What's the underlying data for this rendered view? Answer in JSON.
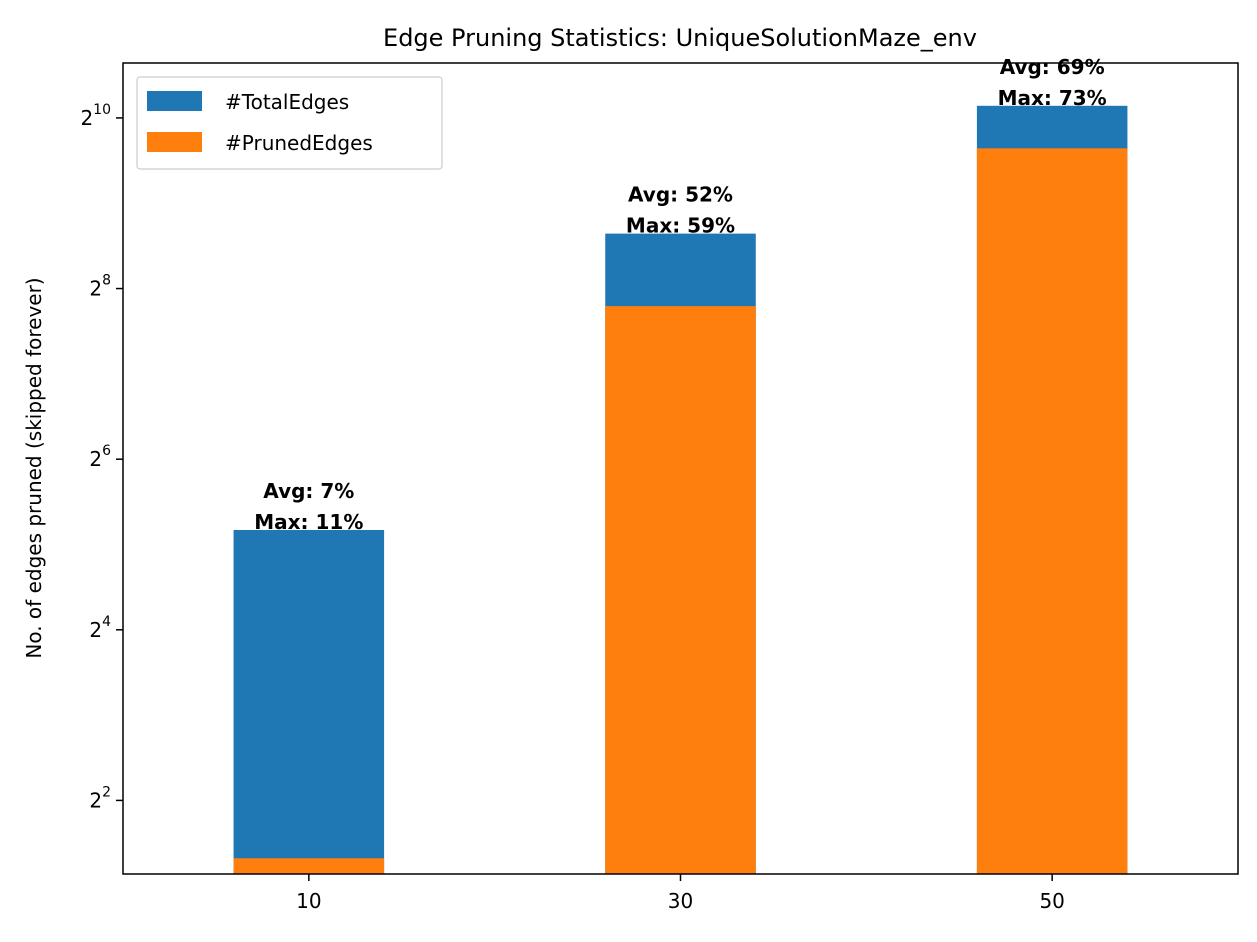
{
  "chart_data": {
    "type": "bar",
    "stacked_overlay": true,
    "title": "Edge Pruning Statistics: UniqueSolutionMaze_env",
    "xlabel": "",
    "ylabel": "No. of edges pruned (skipped forever)",
    "y_scale": "log2",
    "categories": [
      "10",
      "30",
      "50"
    ],
    "series": [
      {
        "name": "#TotalEdges",
        "color": "#1f77b4",
        "values": [
          36,
          400,
          1130
        ]
      },
      {
        "name": "#PrunedEdges",
        "color": "#ff7f0e",
        "values": [
          2.5,
          222,
          800
        ]
      }
    ],
    "bar_labels": [
      {
        "avg": "Avg: 7%",
        "max": "Max: 11%"
      },
      {
        "avg": "Avg: 52%",
        "max": "Max: 59%"
      },
      {
        "avg": "Avg: 69%",
        "max": "Max: 73%"
      }
    ],
    "y_ticks": [
      {
        "base": "2",
        "exp": "2",
        "value": 4
      },
      {
        "base": "2",
        "exp": "4",
        "value": 16
      },
      {
        "base": "2",
        "exp": "6",
        "value": 64
      },
      {
        "base": "2",
        "exp": "8",
        "value": 256
      },
      {
        "base": "2",
        "exp": "10",
        "value": 1024
      }
    ],
    "ylim": [
      2.2,
      1600
    ],
    "legend_position": "upper-left",
    "grid": false
  }
}
